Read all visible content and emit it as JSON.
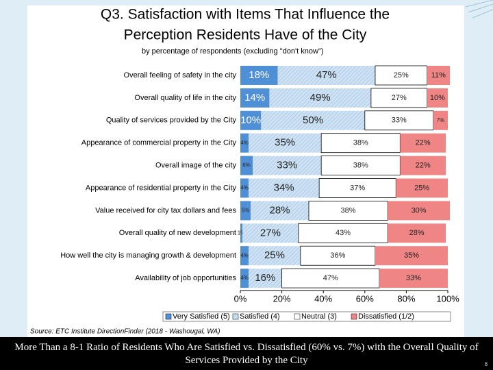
{
  "chart_data": {
    "type": "stacked-bar-horizontal",
    "title": [
      "Q3. Satisfaction with Items That Influence the",
      "Perception Residents Have of the City"
    ],
    "subtitle": "by percentage of respondents (excluding \"don't know\")",
    "source": "Source:  ETC Institute DirectionFinder (2018 - Washougal, WA)",
    "categories": [
      "Overall feeling of safety in the city",
      "Overall quality of life in the city",
      "Quality of services provided by the City",
      "Appearance of commercial property in the City",
      "Overall image of the city",
      "Appearance of residential property in the City",
      "Value received for city tax dollars and fees",
      "Overall quality of new development",
      "How well the city is managing growth & development",
      "Availability of job opportunities"
    ],
    "series": [
      {
        "name": "Very Satisfied (5)",
        "color": "#4f8fd6",
        "values": [
          18,
          14,
          10,
          4,
          6,
          4,
          5,
          1,
          4,
          4
        ],
        "value_labels": [
          "18%",
          "14%",
          "10%",
          "4%",
          "6%",
          "4%",
          "5%",
          "1%",
          "4%",
          "4%"
        ]
      },
      {
        "name": "Satisfied (4)",
        "color": "#cfe2f3",
        "values": [
          47,
          49,
          50,
          35,
          33,
          34,
          28,
          27,
          25,
          16
        ],
        "value_labels": [
          "47%",
          "49%",
          "50%",
          "35%",
          "33%",
          "34%",
          "28%",
          "27%",
          "25%",
          "16%"
        ]
      },
      {
        "name": "Neutral (3)",
        "color": "#ffffff",
        "values": [
          25,
          27,
          33,
          38,
          38,
          37,
          38,
          43,
          36,
          47
        ],
        "value_labels": [
          "25%",
          "27%",
          "33%",
          "38%",
          "38%",
          "37%",
          "38%",
          "43%",
          "36%",
          "47%"
        ]
      },
      {
        "name": "Dissatisfied (1/2)",
        "color": "#f08585",
        "values": [
          11,
          10,
          7,
          22,
          22,
          25,
          30,
          28,
          35,
          33
        ],
        "value_labels": [
          "11%",
          "10%",
          "7%",
          "22%",
          "22%",
          "25%",
          "30%",
          "28%",
          "35%",
          "33%"
        ]
      }
    ],
    "xlim": [
      0,
      100
    ],
    "xticks": [
      {
        "value": 0,
        "label": "0%"
      },
      {
        "value": 20,
        "label": "20%"
      },
      {
        "value": 40,
        "label": "40%"
      },
      {
        "value": 60,
        "label": "60%"
      },
      {
        "value": 80,
        "label": "80%"
      },
      {
        "value": 100,
        "label": "100%"
      }
    ],
    "legend": "bottom"
  },
  "slide": {
    "caption": "More Than a 8-1 Ratio of Residents Who Are Satisfied vs. Dissatisfied (60% vs. 7%) with the Overall Quality of Services Provided by the City",
    "page_number": "8"
  }
}
